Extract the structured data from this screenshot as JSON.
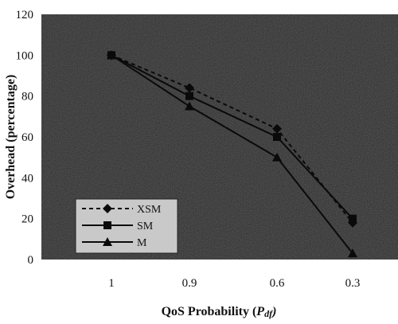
{
  "chart_data": {
    "type": "line",
    "title": "",
    "xlabel": "QoS Probability (",
    "xlabel_var": "P",
    "xlabel_sub": "df",
    "xlabel_close": ")",
    "ylabel": "Overhead (percentage)",
    "categories": [
      "1",
      "0.9",
      "0.6",
      "0.3"
    ],
    "ylim": [
      0,
      120
    ],
    "yticks": [
      "0",
      "20",
      "40",
      "60",
      "80",
      "100",
      "120"
    ],
    "series": [
      {
        "name": "XSM",
        "values": [
          100,
          84,
          64,
          18
        ],
        "marker": "diamond",
        "dash": "dashed"
      },
      {
        "name": "SM",
        "values": [
          100,
          80,
          60,
          20
        ],
        "marker": "square",
        "dash": "solid"
      },
      {
        "name": "M",
        "values": [
          100,
          75,
          50,
          3
        ],
        "marker": "triangle",
        "dash": "solid"
      }
    ],
    "grid": false,
    "legend_position": "bottom-left",
    "colors": {
      "plot_bg": "#2a2a2a",
      "line": "#0a0a0a",
      "legend_bg": "#c9c9c9",
      "text": "#111111"
    }
  }
}
